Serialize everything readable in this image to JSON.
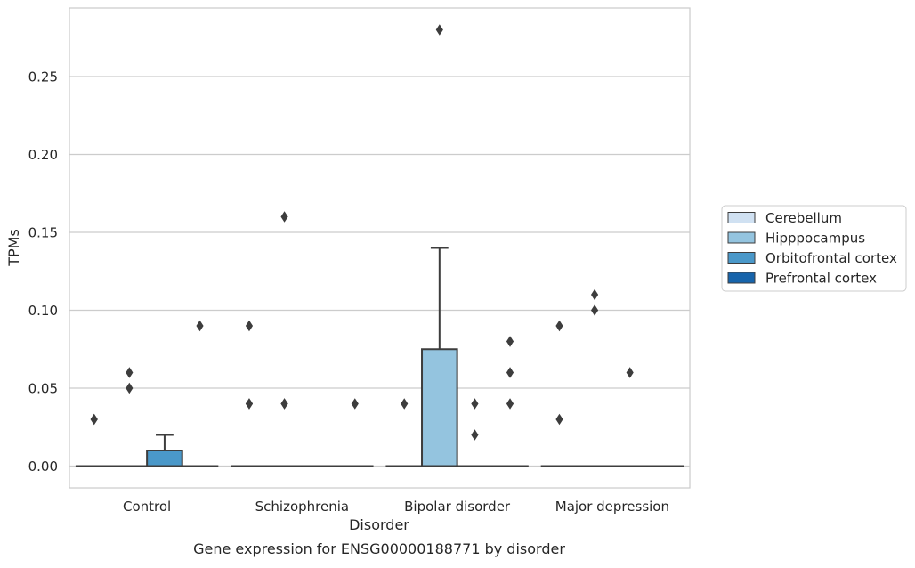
{
  "chart_data": {
    "type": "box",
    "title": "",
    "caption": "Gene expression for ENSG00000188771 by disorder",
    "xlabel": "Disorder",
    "ylabel": "TPMs",
    "ylim": [
      -0.014,
      0.295
    ],
    "yticks": [
      0.0,
      0.05,
      0.1,
      0.15,
      0.2,
      0.25
    ],
    "ytick_labels": [
      "0.00",
      "0.05",
      "0.10",
      "0.15",
      "0.20",
      "0.25"
    ],
    "grid": "horizontal",
    "legend_position": "right",
    "categories": [
      "Control",
      "Schizophrenia",
      "Bipolar disorder",
      "Major depression"
    ],
    "series": [
      {
        "name": "Cerebellum",
        "color": "#d0e1f2",
        "boxes": [
          {
            "q1": 0,
            "median": 0,
            "q3": 0,
            "whislo": 0,
            "whishi": 0,
            "fliers": [
              0.03,
              0.03
            ]
          },
          {
            "q1": 0,
            "median": 0,
            "q3": 0,
            "whislo": 0,
            "whishi": 0,
            "fliers": [
              0.09,
              0.04,
              0.04
            ]
          },
          {
            "q1": 0,
            "median": 0,
            "q3": 0,
            "whislo": 0,
            "whishi": 0,
            "fliers": [
              0.04
            ]
          },
          {
            "q1": 0,
            "median": 0,
            "q3": 0,
            "whislo": 0,
            "whishi": 0,
            "fliers": [
              0.09,
              0.03
            ]
          }
        ]
      },
      {
        "name": "Hipppocampus",
        "color": "#94c4df",
        "boxes": [
          {
            "q1": 0,
            "median": 0,
            "q3": 0,
            "whislo": 0,
            "whishi": 0,
            "fliers": [
              0.06,
              0.05
            ]
          },
          {
            "q1": 0,
            "median": 0,
            "q3": 0,
            "whislo": 0,
            "whishi": 0,
            "fliers": [
              0.16,
              0.04,
              0.04
            ]
          },
          {
            "q1": 0,
            "median": 0,
            "q3": 0.075,
            "whislo": 0,
            "whishi": 0.14,
            "fliers": [
              0.28
            ]
          },
          {
            "q1": 0,
            "median": 0,
            "q3": 0,
            "whislo": 0,
            "whishi": 0,
            "fliers": [
              0.11,
              0.1
            ]
          }
        ]
      },
      {
        "name": "Orbitofrontal cortex",
        "color": "#4a98c9",
        "boxes": [
          {
            "q1": 0,
            "median": 0,
            "q3": 0.01,
            "whislo": 0,
            "whishi": 0.02,
            "fliers": []
          },
          {
            "q1": 0,
            "median": 0,
            "q3": 0,
            "whislo": 0,
            "whishi": 0,
            "fliers": []
          },
          {
            "q1": 0,
            "median": 0,
            "q3": 0,
            "whislo": 0,
            "whishi": 0,
            "fliers": [
              0.04,
              0.02
            ]
          },
          {
            "q1": 0,
            "median": 0,
            "q3": 0,
            "whislo": 0,
            "whishi": 0,
            "fliers": [
              0.06
            ]
          }
        ]
      },
      {
        "name": "Prefrontal cortex",
        "color": "#1764ab",
        "boxes": [
          {
            "q1": 0,
            "median": 0,
            "q3": 0,
            "whislo": 0,
            "whishi": 0,
            "fliers": [
              0.09
            ]
          },
          {
            "q1": 0,
            "median": 0,
            "q3": 0,
            "whislo": 0,
            "whishi": 0,
            "fliers": [
              0.04
            ]
          },
          {
            "q1": 0,
            "median": 0,
            "q3": 0,
            "whislo": 0,
            "whishi": 0,
            "fliers": [
              0.08,
              0.06,
              0.04
            ]
          },
          {
            "q1": 0,
            "median": 0,
            "q3": 0,
            "whislo": 0,
            "whishi": 0,
            "fliers": []
          }
        ]
      }
    ]
  }
}
